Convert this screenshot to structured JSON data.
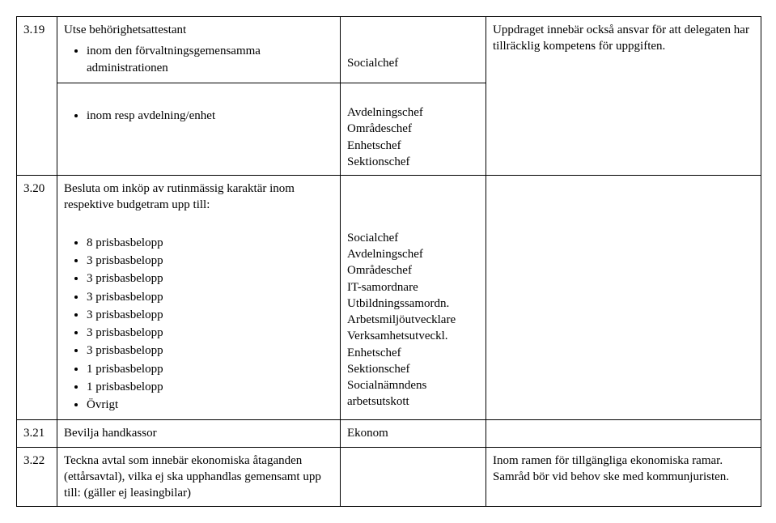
{
  "rows": {
    "r319": {
      "num": "3.19",
      "title": "Utse behörighetsattestant",
      "bullet1": "inom den förvaltningsgemensamma administrationen",
      "col3": "Socialchef",
      "col4": "Uppdraget innebär också ansvar för att delegaten har tillräcklig kompetens för uppgiften."
    },
    "r319b": {
      "bullet1": "inom resp avdelning/enhet",
      "c3l1": "Avdelningschef",
      "c3l2": "Områdeschef",
      "c3l3": "Enhetschef",
      "c3l4": "Sektionschef"
    },
    "r320": {
      "num": "3.20",
      "title": "Besluta om inköp av rutinmässig karaktär inom respektive budgetram upp till:",
      "b1": "8 prisbasbelopp",
      "b2": "3 prisbasbelopp",
      "b3": "3 prisbasbelopp",
      "b4": "3 prisbasbelopp",
      "b5": "3 prisbasbelopp",
      "b6": "3 prisbasbelopp",
      "b7": "3 prisbasbelopp",
      "b8": "1 prisbasbelopp",
      "b9": "1 prisbasbelopp",
      "b10": "Övrigt",
      "c3l1": "Socialchef",
      "c3l2": "Avdelningschef",
      "c3l3": "Områdeschef",
      "c3l4": "IT-samordnare",
      "c3l5": "Utbildningssamordn.",
      "c3l6": "Arbetsmiljöutvecklare",
      "c3l7": "Verksamhetsutveckl.",
      "c3l8": "Enhetschef",
      "c3l9": "Sektionschef",
      "c3l10": "Socialnämndens arbetsutskott"
    },
    "r321": {
      "num": "3.21",
      "title": "Bevilja handkassor",
      "col3": "Ekonom"
    },
    "r322": {
      "num": "3.22",
      "title": "Teckna avtal som innebär ekonomiska åtaganden (ettårsavtal), vilka ej ska upphandlas gemensamt upp till: (gäller ej leasingbilar)",
      "col4": "Inom ramen för tillgängliga ekonomiska ramar. Samråd bör vid behov ske med kommunjuristen."
    }
  }
}
